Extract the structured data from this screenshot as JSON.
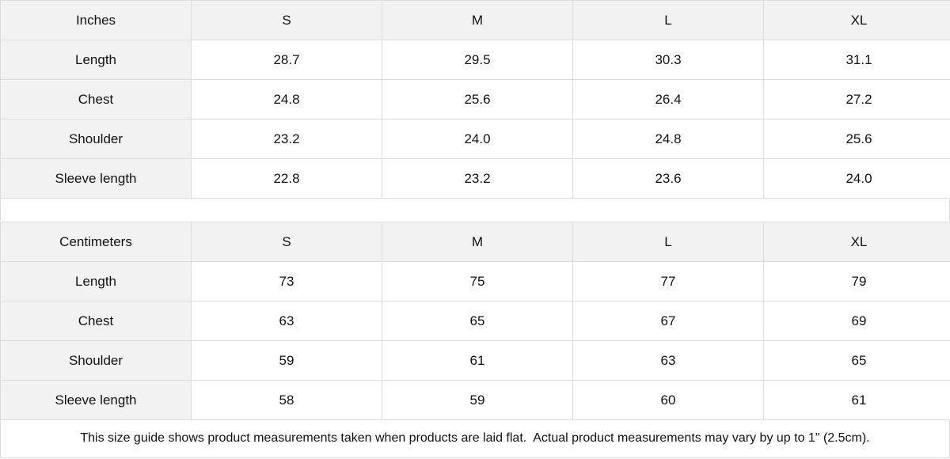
{
  "tables": [
    {
      "unit": "Inches",
      "sizes": [
        "S",
        "M",
        "L",
        "XL"
      ],
      "rows": [
        {
          "label": "Length",
          "values": [
            "28.7",
            "29.5",
            "30.3",
            "31.1"
          ]
        },
        {
          "label": "Chest",
          "values": [
            "24.8",
            "25.6",
            "26.4",
            "27.2"
          ]
        },
        {
          "label": "Shoulder",
          "values": [
            "23.2",
            "24.0",
            "24.8",
            "25.6"
          ]
        },
        {
          "label": "Sleeve length",
          "values": [
            "22.8",
            "23.2",
            "23.6",
            "24.0"
          ]
        }
      ]
    },
    {
      "unit": "Centimeters",
      "sizes": [
        "S",
        "M",
        "L",
        "XL"
      ],
      "rows": [
        {
          "label": "Length",
          "values": [
            "73",
            "75",
            "77",
            "79"
          ]
        },
        {
          "label": "Chest",
          "values": [
            "63",
            "65",
            "67",
            "69"
          ]
        },
        {
          "label": "Shoulder",
          "values": [
            "59",
            "61",
            "63",
            "65"
          ]
        },
        {
          "label": "Sleeve length",
          "values": [
            "58",
            "59",
            "60",
            "61"
          ]
        }
      ]
    }
  ],
  "note": "This size guide shows product measurements taken when products are laid flat.  Actual product measurements may vary by up to 1\" (2.5cm).",
  "colors": {
    "header_bg": "#f2f2f2",
    "border": "#dcdcdc"
  }
}
